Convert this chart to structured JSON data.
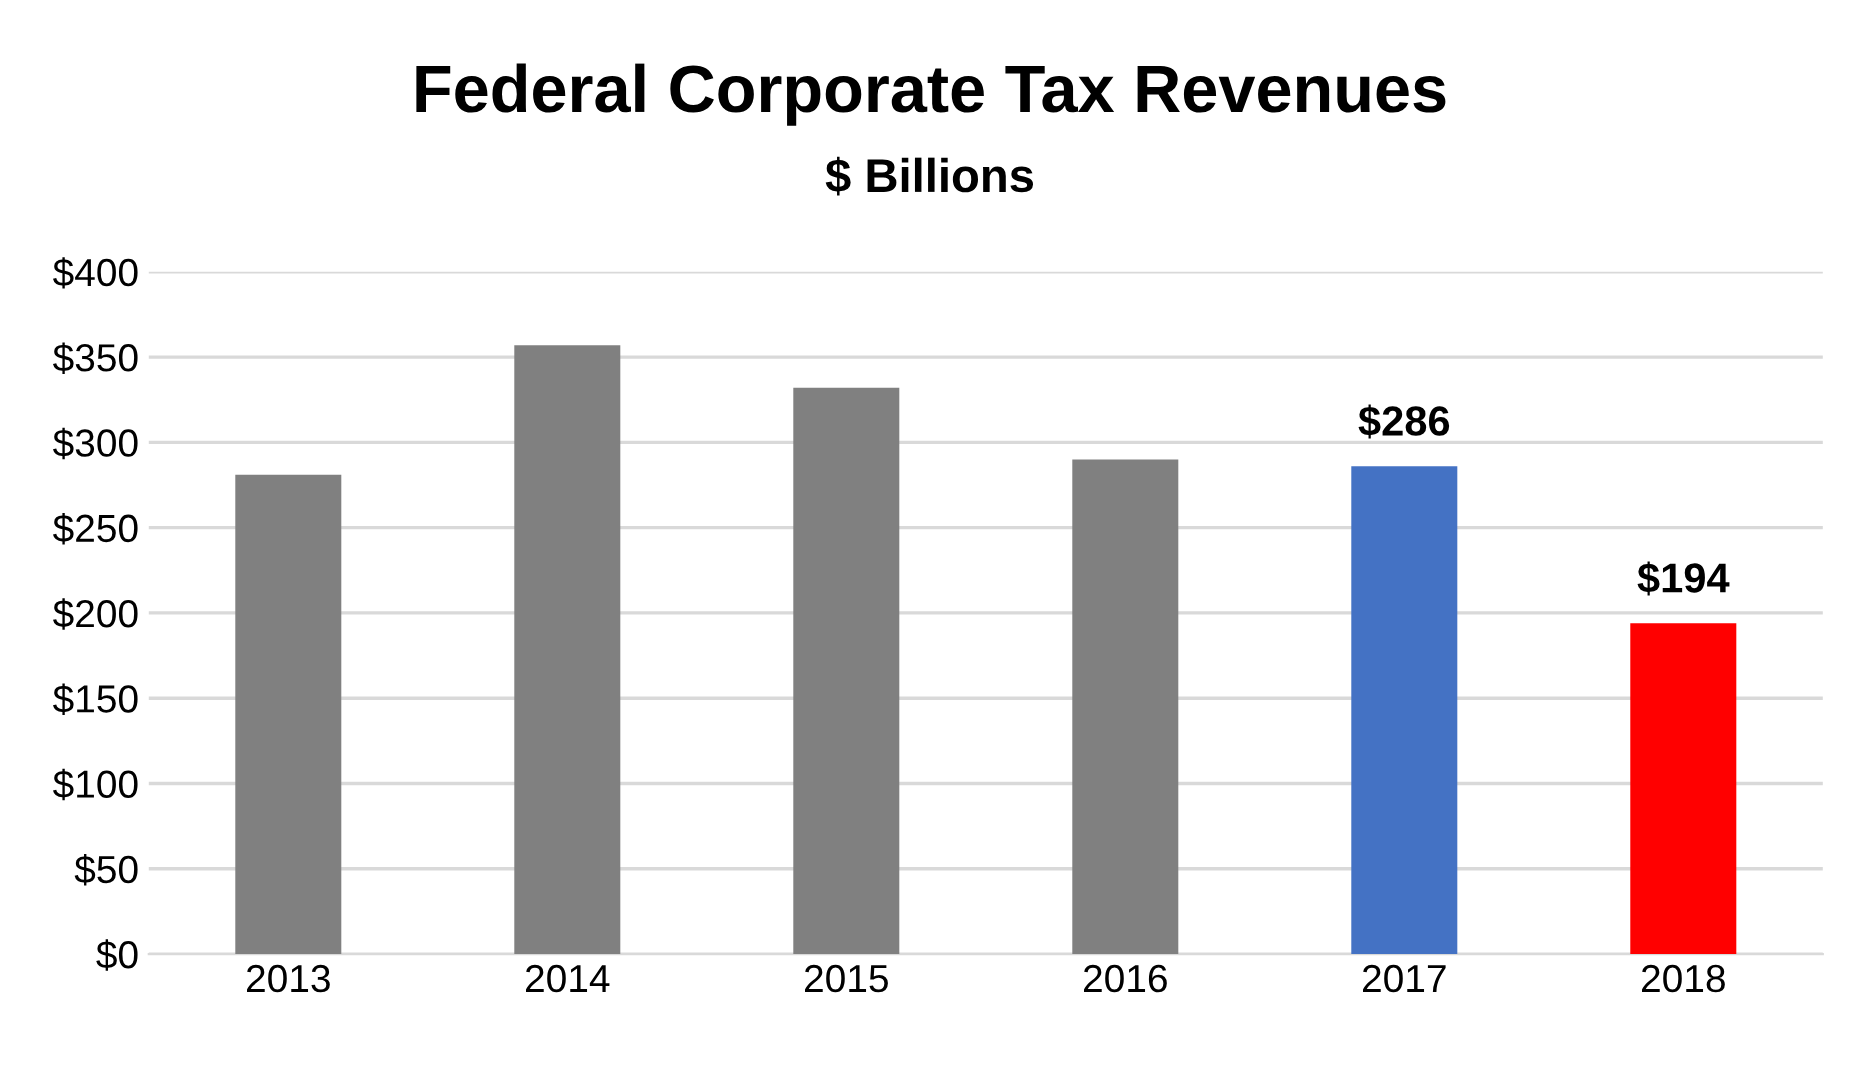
{
  "chart_data": {
    "type": "bar",
    "title": "Federal Corporate Tax Revenues",
    "subtitle": "$ Billions",
    "categories": [
      "2013",
      "2014",
      "2015",
      "2016",
      "2017",
      "2018"
    ],
    "values": [
      281,
      357,
      332,
      290,
      286,
      194
    ],
    "colors": [
      "#808080",
      "#808080",
      "#808080",
      "#808080",
      "#4472c4",
      "#ff0000"
    ],
    "value_labels": [
      null,
      null,
      null,
      null,
      "$286",
      "$194"
    ],
    "ylim": [
      0,
      400
    ],
    "yticks": [
      {
        "value": 0,
        "label": "$0"
      },
      {
        "value": 50,
        "label": "$50"
      },
      {
        "value": 100,
        "label": "$100"
      },
      {
        "value": 150,
        "label": "$150"
      },
      {
        "value": 200,
        "label": "$200"
      },
      {
        "value": 250,
        "label": "$250"
      },
      {
        "value": 300,
        "label": "$300"
      },
      {
        "value": 350,
        "label": "$350"
      },
      {
        "value": 400,
        "label": "$400"
      }
    ],
    "grid": "y",
    "legend": false
  }
}
